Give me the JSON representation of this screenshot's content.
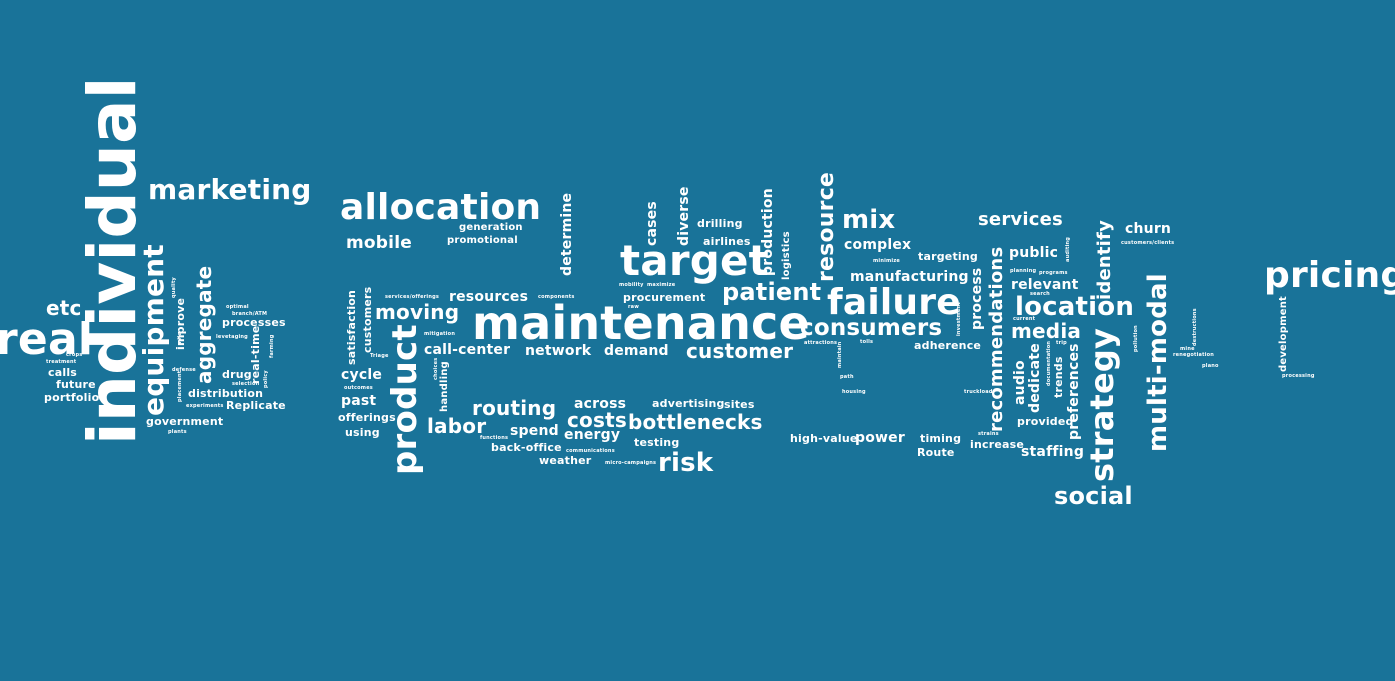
{
  "words": {
    "individual": "individual",
    "real": "real",
    "equipment": "equipment",
    "marketing": "marketing",
    "aggregate": "aggregate",
    "etc": "etc",
    "improve": "improve",
    "processes": "processes",
    "real_time": "real-time",
    "drug": "drug",
    "calls": "calls",
    "future": "future",
    "portfolio": "portfolio",
    "distribution": "distribution",
    "replicate": "Replicate",
    "government": "government",
    "allocation": "allocation",
    "mobile": "mobile",
    "generation": "generation",
    "promotional": "promotional",
    "product": "product",
    "moving": "moving",
    "satisfaction": "satisfaction",
    "customers": "customers",
    "resources": "resources",
    "call_center": "call-center",
    "network": "network",
    "demand": "demand",
    "cycle": "cycle",
    "past": "past",
    "offerings": "offerings",
    "using": "using",
    "handling": "handling",
    "routing": "routing",
    "labor": "labor",
    "spend": "spend",
    "back_office": "back-office",
    "weather": "weather",
    "across": "across",
    "costs": "costs",
    "energy": "energy",
    "advertising": "advertising",
    "sites": "sites",
    "bottlenecks": "bottlenecks",
    "testing": "testing",
    "risk": "risk",
    "maintenance": "maintenance",
    "target": "target",
    "determine": "determine",
    "cases": "cases",
    "diverse": "diverse",
    "drilling": "drilling",
    "airlines": "airlines",
    "procurement": "procurement",
    "customer": "customer",
    "production": "production",
    "logistics": "logistics",
    "resource": "resource",
    "patient": "patient",
    "failure": "failure",
    "consumers": "consumers",
    "mix": "mix",
    "complex": "complex",
    "targeting": "targeting",
    "manufacturing": "manufacturing",
    "adherence": "adherence",
    "high_value": "high-value",
    "power": "power",
    "timing": "timing",
    "route": "Route",
    "increase": "increase",
    "services": "services",
    "process": "process",
    "recommendations": "recommendations",
    "public": "public",
    "relevant": "relevant",
    "location": "location",
    "media": "media",
    "audio": "audio",
    "dedicate": "dedicate",
    "trends": "trends",
    "preferences": "preferences",
    "provided": "provided",
    "staffing": "staffing",
    "strategy": "strategy",
    "identify": "identify",
    "churn": "churn",
    "multi_modal": "multi-modal",
    "social": "social",
    "pricing": "pricing",
    "development": "development",
    "crops": "crops",
    "quality": "quality",
    "optimal": "optimal",
    "branch_atm": "branch/ATM",
    "levetaging": "levetaging",
    "treatment": "treatment",
    "mile": "mile",
    "defense": "defense",
    "selection": "selection",
    "policy": "policy",
    "farming": "farming",
    "placement": "placement",
    "experiments": "experiments",
    "plants": "plants",
    "services_offerings": "services/offerings",
    "components": "components",
    "mitigation": "mitigation",
    "triage": "Triage",
    "outcomes": "outcomes",
    "choices": "choices",
    "functions": "functions",
    "communications": "communications",
    "micro_campaigns": "micro-campaigns",
    "mobility": "mobility",
    "maximize": "maximize",
    "raw": "raw",
    "attractions": "attractions",
    "tolls": "tolls",
    "maintain": "maintain",
    "path": "path",
    "housing": "housing",
    "minimize": "minimize",
    "investment": "investment",
    "truckload": "truckload",
    "strains": "strains",
    "planning": "planning",
    "programs": "programs",
    "auditing": "auditing",
    "search": "search",
    "current": "current",
    "trip": "trip",
    "documentation": "documentation",
    "customers_clients": "customers/clients",
    "pollution": "pollution",
    "mine": "mine",
    "renegotiation": "renegotiation",
    "destructions": "destructions",
    "plano": "plano",
    "processing": "processing"
  }
}
